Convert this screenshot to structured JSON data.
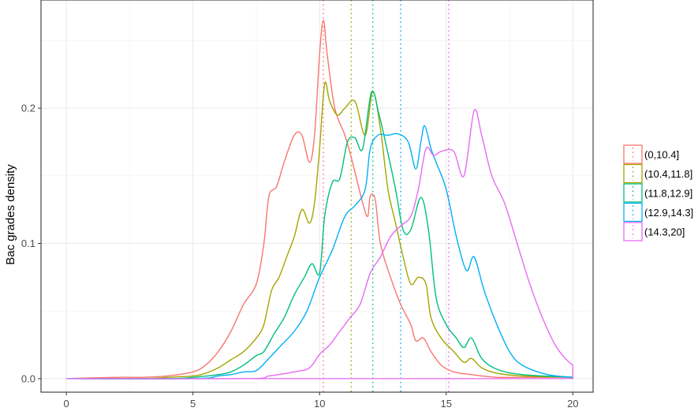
{
  "chart_data": {
    "type": "line",
    "title": "",
    "xlabel": "",
    "ylabel": "Bac grades density",
    "xlim": [
      -1,
      20.8
    ],
    "ylim": [
      -0.01,
      0.28
    ],
    "x_ticks": [
      0,
      5,
      10,
      15,
      20
    ],
    "x_tick_labels": [
      "0",
      "5",
      "10",
      "15",
      "20"
    ],
    "y_ticks": [
      0.0,
      0.1,
      0.2
    ],
    "y_tick_labels": [
      "0.0",
      "0.1",
      "0.2"
    ],
    "grid": true,
    "legend_position": "right",
    "series": [
      {
        "name": "(0,10.4]",
        "color": "#F8766D",
        "mean": 10.15,
        "points": [
          [
            0,
            0
          ],
          [
            2,
            0.001
          ],
          [
            3,
            0.001
          ],
          [
            4,
            0.002
          ],
          [
            5,
            0.005
          ],
          [
            5.5,
            0.01
          ],
          [
            6,
            0.02
          ],
          [
            6.5,
            0.035
          ],
          [
            7,
            0.055
          ],
          [
            7.5,
            0.07
          ],
          [
            7.8,
            0.1
          ],
          [
            8,
            0.135
          ],
          [
            8.3,
            0.142
          ],
          [
            8.6,
            0.16
          ],
          [
            9,
            0.18
          ],
          [
            9.3,
            0.18
          ],
          [
            9.6,
            0.16
          ],
          [
            9.8,
            0.18
          ],
          [
            10,
            0.24
          ],
          [
            10.15,
            0.265
          ],
          [
            10.3,
            0.24
          ],
          [
            10.6,
            0.2
          ],
          [
            11,
            0.18
          ],
          [
            11.3,
            0.16
          ],
          [
            11.7,
            0.13
          ],
          [
            11.9,
            0.12
          ],
          [
            12,
            0.135
          ],
          [
            12.2,
            0.132
          ],
          [
            12.4,
            0.1
          ],
          [
            12.8,
            0.075
          ],
          [
            13.2,
            0.055
          ],
          [
            13.6,
            0.04
          ],
          [
            13.8,
            0.028
          ],
          [
            14.1,
            0.03
          ],
          [
            14.4,
            0.02
          ],
          [
            14.8,
            0.01
          ],
          [
            15.3,
            0.005
          ],
          [
            16,
            0.003
          ],
          [
            17,
            0.001
          ],
          [
            18,
            0.001
          ],
          [
            20,
            0.001
          ]
        ]
      },
      {
        "name": "(10.4,11.8]",
        "color": "#A3A500",
        "mean": 11.25,
        "points": [
          [
            0,
            0
          ],
          [
            3,
            0
          ],
          [
            4,
            0.001
          ],
          [
            5,
            0.002
          ],
          [
            5.5,
            0.004
          ],
          [
            6,
            0.008
          ],
          [
            6.5,
            0.014
          ],
          [
            7,
            0.02
          ],
          [
            7.5,
            0.03
          ],
          [
            7.8,
            0.04
          ],
          [
            8.1,
            0.065
          ],
          [
            8.4,
            0.075
          ],
          [
            8.7,
            0.09
          ],
          [
            9,
            0.105
          ],
          [
            9.3,
            0.125
          ],
          [
            9.6,
            0.115
          ],
          [
            9.8,
            0.13
          ],
          [
            10,
            0.17
          ],
          [
            10.2,
            0.218
          ],
          [
            10.4,
            0.205
          ],
          [
            10.7,
            0.195
          ],
          [
            11,
            0.2
          ],
          [
            11.4,
            0.205
          ],
          [
            11.8,
            0.18
          ],
          [
            12.1,
            0.212
          ],
          [
            12.4,
            0.185
          ],
          [
            12.7,
            0.14
          ],
          [
            13,
            0.115
          ],
          [
            13.3,
            0.09
          ],
          [
            13.6,
            0.07
          ],
          [
            13.9,
            0.075
          ],
          [
            14.2,
            0.07
          ],
          [
            14.4,
            0.045
          ],
          [
            14.8,
            0.03
          ],
          [
            15.3,
            0.02
          ],
          [
            15.7,
            0.012
          ],
          [
            16,
            0.015
          ],
          [
            16.4,
            0.008
          ],
          [
            17,
            0.004
          ],
          [
            18,
            0.002
          ],
          [
            20,
            0.001
          ]
        ]
      },
      {
        "name": "(11.8,12.9]",
        "color": "#00BF7D",
        "mean": 12.1,
        "points": [
          [
            0,
            0
          ],
          [
            4,
            0
          ],
          [
            5,
            0.001
          ],
          [
            6,
            0.003
          ],
          [
            6.5,
            0.005
          ],
          [
            7,
            0.01
          ],
          [
            7.5,
            0.017
          ],
          [
            7.8,
            0.02
          ],
          [
            8.2,
            0.033
          ],
          [
            8.6,
            0.045
          ],
          [
            9,
            0.062
          ],
          [
            9.4,
            0.075
          ],
          [
            9.7,
            0.085
          ],
          [
            10,
            0.078
          ],
          [
            10.2,
            0.12
          ],
          [
            10.5,
            0.145
          ],
          [
            10.8,
            0.148
          ],
          [
            11.1,
            0.175
          ],
          [
            11.4,
            0.178
          ],
          [
            11.7,
            0.17
          ],
          [
            12.05,
            0.212
          ],
          [
            12.35,
            0.195
          ],
          [
            12.6,
            0.175
          ],
          [
            13,
            0.14
          ],
          [
            13.3,
            0.11
          ],
          [
            13.6,
            0.11
          ],
          [
            14,
            0.134
          ],
          [
            14.3,
            0.11
          ],
          [
            14.6,
            0.06
          ],
          [
            15,
            0.04
          ],
          [
            15.4,
            0.03
          ],
          [
            15.7,
            0.023
          ],
          [
            16,
            0.03
          ],
          [
            16.4,
            0.015
          ],
          [
            17,
            0.007
          ],
          [
            18,
            0.003
          ],
          [
            20,
            0.001
          ]
        ]
      },
      {
        "name": "(12.9,14.3]",
        "color": "#00B0F6",
        "mean": 13.2,
        "points": [
          [
            0,
            0
          ],
          [
            5,
            0
          ],
          [
            6,
            0.002
          ],
          [
            6.5,
            0.003
          ],
          [
            7,
            0.005
          ],
          [
            7.5,
            0.006
          ],
          [
            8,
            0.015
          ],
          [
            8.5,
            0.025
          ],
          [
            9,
            0.035
          ],
          [
            9.5,
            0.05
          ],
          [
            10,
            0.075
          ],
          [
            10.5,
            0.095
          ],
          [
            11,
            0.12
          ],
          [
            11.4,
            0.128
          ],
          [
            11.8,
            0.14
          ],
          [
            12,
            0.17
          ],
          [
            12.3,
            0.18
          ],
          [
            12.7,
            0.18
          ],
          [
            13.1,
            0.181
          ],
          [
            13.5,
            0.175
          ],
          [
            13.8,
            0.155
          ],
          [
            14,
            0.175
          ],
          [
            14.15,
            0.187
          ],
          [
            14.4,
            0.17
          ],
          [
            14.6,
            0.16
          ],
          [
            15,
            0.14
          ],
          [
            15.4,
            0.105
          ],
          [
            15.8,
            0.08
          ],
          [
            16.1,
            0.09
          ],
          [
            16.5,
            0.065
          ],
          [
            17,
            0.04
          ],
          [
            17.5,
            0.02
          ],
          [
            18,
            0.01
          ],
          [
            19,
            0.003
          ],
          [
            20,
            0.001
          ]
        ]
      },
      {
        "name": "(14.3,20]",
        "color": "#E76BF3",
        "mean": 15.1,
        "points": [
          [
            0,
            0
          ],
          [
            7,
            0
          ],
          [
            8,
            0.002
          ],
          [
            9,
            0.005
          ],
          [
            9.6,
            0.008
          ],
          [
            10,
            0.018
          ],
          [
            10.4,
            0.025
          ],
          [
            10.8,
            0.035
          ],
          [
            11.2,
            0.045
          ],
          [
            11.6,
            0.055
          ],
          [
            12,
            0.078
          ],
          [
            12.4,
            0.09
          ],
          [
            12.8,
            0.105
          ],
          [
            13.2,
            0.113
          ],
          [
            13.6,
            0.12
          ],
          [
            13.9,
            0.14
          ],
          [
            14.2,
            0.17
          ],
          [
            14.5,
            0.165
          ],
          [
            14.8,
            0.168
          ],
          [
            15.3,
            0.168
          ],
          [
            15.7,
            0.15
          ],
          [
            16.1,
            0.198
          ],
          [
            16.4,
            0.18
          ],
          [
            16.8,
            0.15
          ],
          [
            17.3,
            0.13
          ],
          [
            17.8,
            0.1
          ],
          [
            18.3,
            0.07
          ],
          [
            18.8,
            0.045
          ],
          [
            19.3,
            0.025
          ],
          [
            19.7,
            0.015
          ],
          [
            20,
            0.01
          ]
        ]
      }
    ]
  }
}
